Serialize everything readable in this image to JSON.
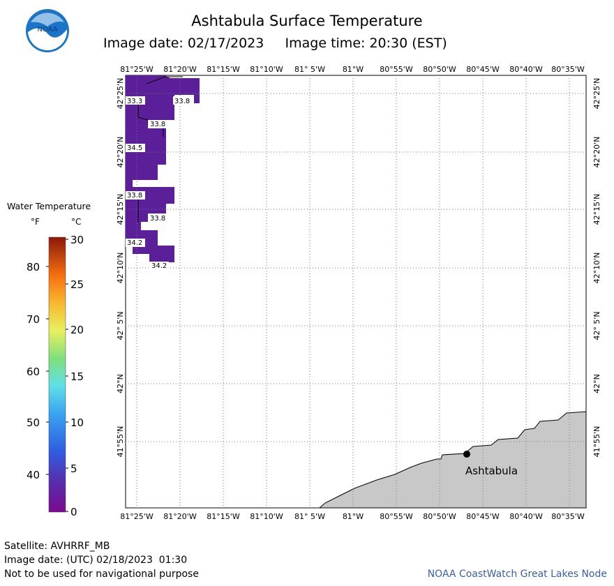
{
  "header": {
    "title": "Ashtabula Surface Temperature",
    "subtitle": "Image date: 02/17/2023     Image time: 20:30 (EST)",
    "logo_text": "NOAA"
  },
  "legend": {
    "title": "Water Temperature",
    "unit_f": "°F",
    "unit_c": "°C",
    "f_ticks": [
      "80",
      "70",
      "60",
      "50",
      "40"
    ],
    "c_ticks": [
      "30",
      "25",
      "20",
      "15",
      "10",
      "5",
      "0"
    ]
  },
  "map": {
    "lon_labels": [
      "81°25'W",
      "81°20'W",
      "81°15'W",
      "81°10'W",
      "81° 5'W",
      "81°W",
      "80°55'W",
      "80°50'W",
      "80°45'W",
      "80°40'W",
      "80°35'W"
    ],
    "lat_labels": [
      "42°25'N",
      "42°20'N",
      "42°15'N",
      "42°10'N",
      "42° 5'N",
      "42°N",
      "41°55'N"
    ],
    "city": "Ashtabula",
    "temp_labels": [
      "33.3",
      "33.8",
      "33.8",
      "34.5",
      "33.8",
      "33.8",
      "34.2",
      "34.2"
    ],
    "water_color": "#5b1f9a",
    "land_color": "#c8c8c8"
  },
  "footer": {
    "satellite": "Satellite: AVHRRF_MB",
    "utc_date": "Image date: (UTC) 02/18/2023  01:30",
    "disclaimer": "Not to be used for navigational purpose",
    "credit": "NOAA CoastWatch Great Lakes Node"
  }
}
